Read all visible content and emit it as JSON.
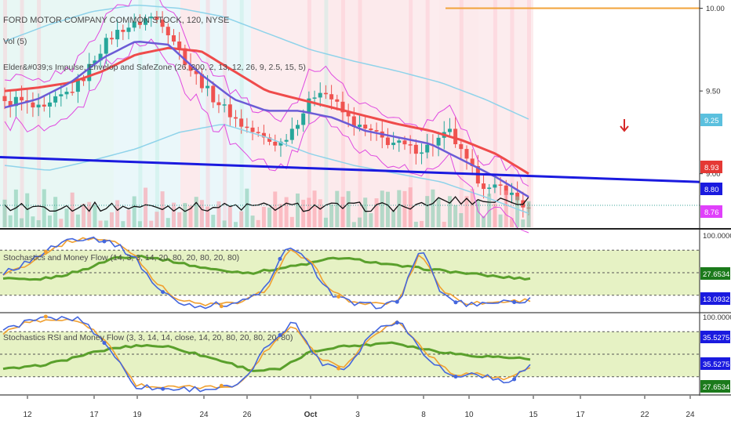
{
  "titles": {
    "main": "FORD MOTOR COMPANY COMMON STOCK, 120, NYSE",
    "vol": "Vol (5)",
    "elder": "Elder&#039;s Impulse, Envelop and SafeZone (26, 200, 2, 13, 12, 26, 9, 2.5, 15, 5)",
    "stoch": "Stochastics and Money Flow (14, 3, 3, 14, 20, 80, 20, 80, 20, 80)",
    "stochrsi": "Stochastics RSI and Money Flow (3, 3, 14, 14, close, 14, 20, 80, 20, 80, 20, 80)"
  },
  "colors": {
    "bull": "#26a69a",
    "bear": "#ef5350",
    "blue_line": "#1a1adf",
    "ema_red": "#ef4b4b",
    "ema_purple": "#6b5bd6",
    "channel": "#8fd3ea",
    "envelope": "#e04be0",
    "orange_line": "#f2a33a",
    "green_band": "#e6f2c4",
    "mf_green": "#5aa02c",
    "stoch_orange": "#f0a030",
    "stoch_blue": "#4466dd"
  },
  "chart_data": [
    {
      "panel": "price",
      "type": "candlestick",
      "title": "FORD MOTOR COMPANY COMMON STOCK, 120, NYSE",
      "ylim": [
        8.7,
        10.05
      ],
      "yticks": [
        "10.00",
        "9.50",
        "9.00"
      ],
      "price_labels": [
        {
          "value": "9.25",
          "color": "#5bc0de"
        },
        {
          "value": "8.93",
          "color": "#e53935"
        },
        {
          "value": "8.80",
          "color": "#1a1adf"
        },
        {
          "value": "8.76",
          "color": "#e040fb"
        }
      ],
      "horizontal_lines": [
        {
          "value": 10.0,
          "color": "#f2a33a"
        }
      ],
      "trendline": {
        "from": 9.1,
        "to": 8.95,
        "color": "#1a1adf"
      },
      "down_arrow": "red",
      "x_labels": [
        "12",
        "17",
        "19",
        "24",
        "26",
        "Oct",
        "3",
        "8",
        "10",
        "15",
        "17",
        "22",
        "24"
      ]
    },
    {
      "panel": "stochastics",
      "type": "line",
      "title": "Stochastics and Money Flow (14, 3, 3, 14, 20, 80, 20, 80, 20, 80)",
      "ylim": [
        0,
        100
      ],
      "yticks": [
        "100.0000"
      ],
      "levels": [
        20,
        50,
        80
      ],
      "value_labels": [
        {
          "value": "27.6534",
          "color": "#1b7a1b"
        },
        {
          "value": "13.0932",
          "color": "#1a1adf"
        }
      ]
    },
    {
      "panel": "stochastic_rsi",
      "type": "line",
      "title": "Stochastics RSI and Money Flow (3, 3, 14, 14, close, 14, 20, 80, 20, 80, 20, 80)",
      "ylim": [
        0,
        100
      ],
      "yticks": [
        "100.0000"
      ],
      "levels": [
        20,
        50,
        80
      ],
      "value_labels": [
        {
          "value": "35.5275",
          "color": "#1a1adf"
        },
        {
          "value": "35.5275",
          "color": "#1a1adf"
        },
        {
          "value": "27.6534",
          "color": "#1b7a1b"
        }
      ]
    }
  ]
}
